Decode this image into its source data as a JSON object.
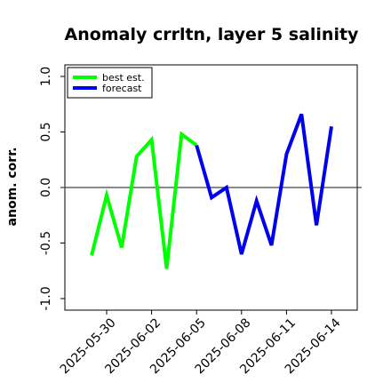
{
  "chart_data": {
    "type": "line",
    "title": "Anomaly crrltn, layer 5 salinity",
    "ylabel": "anom. corr.",
    "xlabel": "",
    "ylim": [
      -1.0,
      1.0
    ],
    "y_ticks": [
      -1.0,
      -0.5,
      0.0,
      0.5,
      1.0
    ],
    "y_tick_labels": [
      "-1.0",
      "-0.5",
      "0.0",
      "0.5",
      "1.0"
    ],
    "x_ticks": [
      "2025-05-30",
      "2025-06-02",
      "2025-06-05",
      "2025-06-08",
      "2025-06-11",
      "2025-06-14"
    ],
    "highlighted_x_tick": "2025-06-05",
    "highlight_color": "#228b22",
    "reference_line_y": 0.0,
    "legend_position": "upper-left",
    "series": [
      {
        "name": "best est.",
        "color": "#00ff00",
        "points": [
          [
            "2025-05-29",
            -0.61
          ],
          [
            "2025-05-30",
            -0.07
          ],
          [
            "2025-05-31",
            -0.54
          ],
          [
            "2025-06-01",
            0.28
          ],
          [
            "2025-06-02",
            0.43
          ],
          [
            "2025-06-03",
            -0.73
          ],
          [
            "2025-06-04",
            0.48
          ],
          [
            "2025-06-05",
            0.38
          ]
        ]
      },
      {
        "name": "forecast",
        "color": "#0000ee",
        "points": [
          [
            "2025-06-05",
            0.38
          ],
          [
            "2025-06-06",
            -0.09
          ],
          [
            "2025-06-07",
            0.0
          ],
          [
            "2025-06-08",
            -0.6
          ],
          [
            "2025-06-09",
            -0.12
          ],
          [
            "2025-06-10",
            -0.52
          ],
          [
            "2025-06-11",
            0.3
          ],
          [
            "2025-06-12",
            0.66
          ],
          [
            "2025-06-13",
            -0.34
          ],
          [
            "2025-06-14",
            0.55
          ]
        ]
      }
    ]
  }
}
